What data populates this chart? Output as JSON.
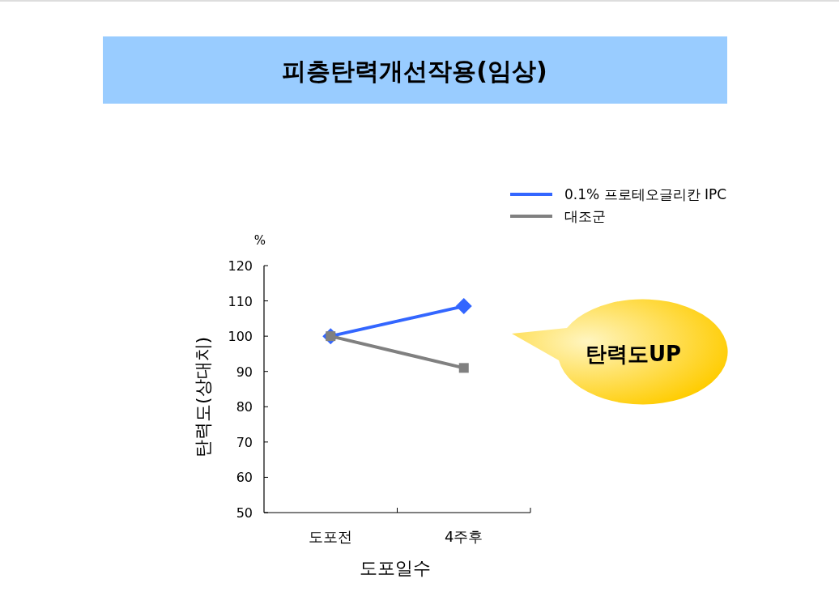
{
  "chart_data": {
    "type": "line",
    "title": "피층탄력개선작용(임상)",
    "xlabel": "도포일수",
    "ylabel": "탄력도(상대치)",
    "categories": [
      "도포전",
      "4주후"
    ],
    "series": [
      {
        "name": "0.1% 프로테오글리칸 IPC",
        "color": "#3366ff",
        "marker": "diamond",
        "values": [
          100,
          108.5
        ]
      },
      {
        "name": "대조군",
        "color": "#808080",
        "marker": "square",
        "values": [
          100,
          91
        ]
      }
    ],
    "ylim": [
      50,
      120
    ],
    "yticks": [
      50,
      60,
      70,
      80,
      90,
      100,
      110,
      120
    ],
    "annotations": [
      "%",
      "탄력도UP"
    ],
    "legend": "top right",
    "grid": false
  }
}
